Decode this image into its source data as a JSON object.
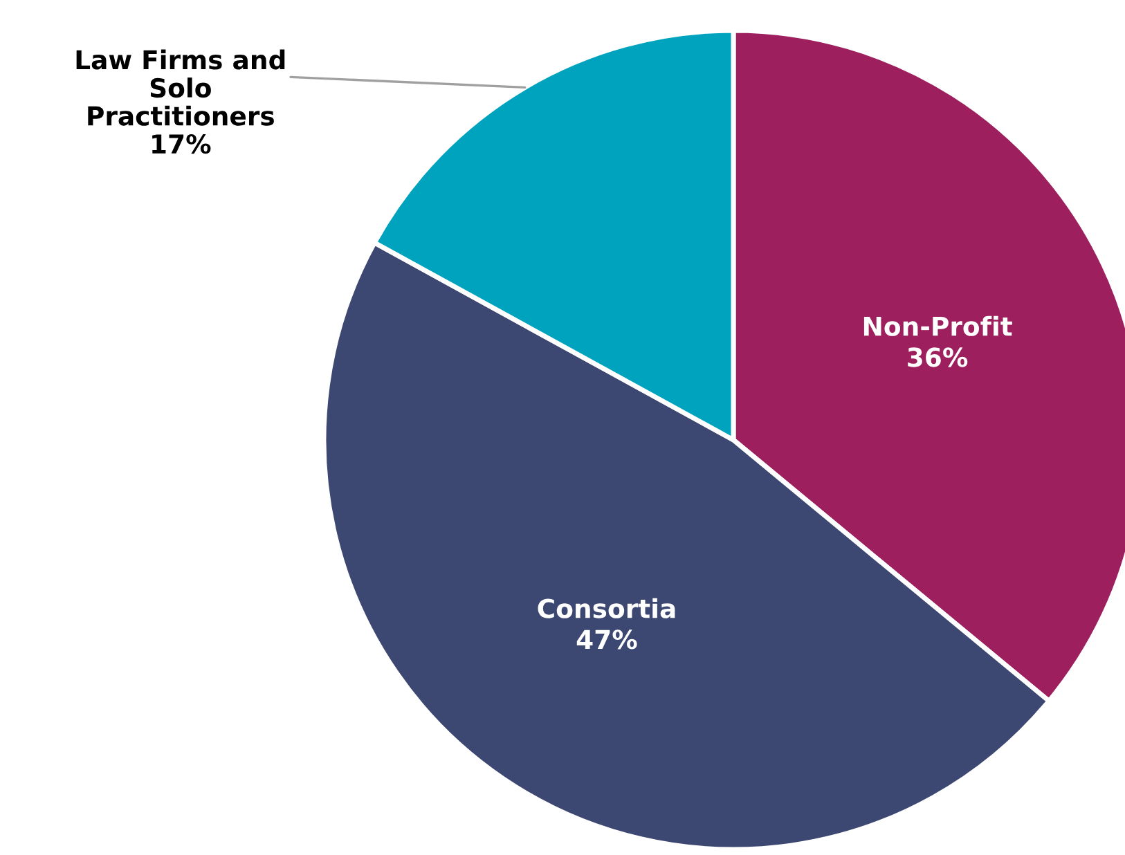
{
  "chart_data": {
    "type": "pie",
    "categories": [
      "Non-Profit",
      "Consortia",
      "Law Firms and\nSolo\nPractitioners"
    ],
    "values": [
      36,
      47,
      17
    ],
    "value_labels": [
      "36%",
      "47%",
      "17%"
    ],
    "colors": [
      "#9e1f5e",
      "#3d4872",
      "#00a3bd"
    ]
  }
}
